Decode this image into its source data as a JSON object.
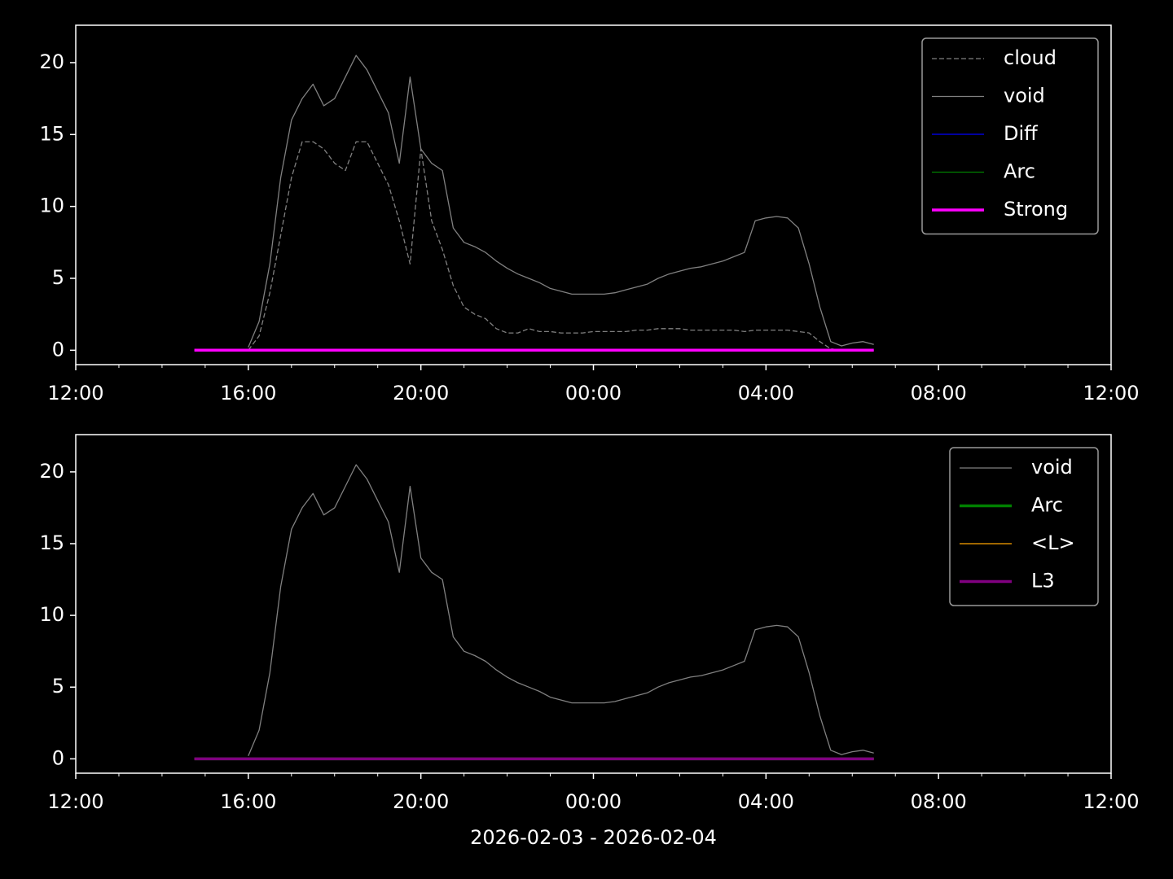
{
  "chart_data": [
    {
      "type": "line",
      "x": [
        14.75,
        15,
        15.25,
        15.5,
        15.75,
        16,
        16.25,
        16.5,
        16.75,
        17,
        17.25,
        17.5,
        17.75,
        18,
        18.25,
        18.5,
        18.75,
        19,
        19.25,
        19.5,
        19.75,
        20,
        20.25,
        20.5,
        20.75,
        21,
        21.25,
        21.5,
        21.75,
        22,
        22.25,
        22.5,
        22.75,
        23,
        23.25,
        23.5,
        23.75,
        24,
        24.25,
        24.5,
        24.75,
        25,
        25.25,
        25.5,
        25.75,
        26,
        26.25,
        26.5,
        26.75,
        27,
        27.25,
        27.5,
        27.75,
        28,
        28.25,
        28.5,
        28.75,
        29,
        29.25,
        29.5,
        29.75,
        30,
        30.25,
        30.5
      ],
      "xlim": [
        12,
        36
      ],
      "xticks": [
        {
          "value": 12,
          "label": "12:00"
        },
        {
          "value": 16,
          "label": "16:00"
        },
        {
          "value": 20,
          "label": "20:00"
        },
        {
          "value": 24,
          "label": "00:00"
        },
        {
          "value": 28,
          "label": "04:00"
        },
        {
          "value": 32,
          "label": "08:00"
        },
        {
          "value": 36,
          "label": "12:00"
        }
      ],
      "xminorticks": [
        13,
        14,
        15,
        17,
        18,
        19,
        21,
        22,
        23,
        25,
        26,
        27,
        29,
        30,
        31,
        33,
        34,
        35
      ],
      "ylim": [
        -1,
        22.6
      ],
      "yticks": [
        0,
        5,
        10,
        15,
        20
      ],
      "legend": "upper right",
      "series": [
        {
          "name": "cloud",
          "color": "#808080",
          "linestyle": "dashed",
          "linewidth": 1.3,
          "values": [
            null,
            null,
            null,
            null,
            null,
            0,
            1,
            4,
            8,
            12,
            14.5,
            14.5,
            14,
            13,
            12.5,
            14.5,
            14.5,
            13,
            11.5,
            9,
            6,
            14,
            9,
            7,
            4.5,
            3,
            2.5,
            2.2,
            1.5,
            1.2,
            1.2,
            1.5,
            1.3,
            1.3,
            1.2,
            1.2,
            1.2,
            1.3,
            1.3,
            1.3,
            1.3,
            1.4,
            1.4,
            1.5,
            1.5,
            1.5,
            1.4,
            1.4,
            1.4,
            1.4,
            1.4,
            1.3,
            1.4,
            1.4,
            1.4,
            1.4,
            1.3,
            1.2,
            0.6,
            0.1,
            0,
            null,
            null,
            null
          ]
        },
        {
          "name": "void",
          "color": "#808080",
          "linestyle": "solid",
          "linewidth": 1.3,
          "values": [
            null,
            null,
            null,
            null,
            null,
            0.2,
            2,
            6,
            12,
            16,
            17.5,
            18.5,
            17,
            17.5,
            19,
            20.5,
            19.5,
            18,
            16.5,
            13,
            19,
            14,
            13,
            12.5,
            8.5,
            7.5,
            7.2,
            6.8,
            6.2,
            5.7,
            5.3,
            5,
            4.7,
            4.3,
            4.1,
            3.9,
            3.9,
            3.9,
            3.9,
            4.0,
            4.2,
            4.4,
            4.6,
            5.0,
            5.3,
            5.5,
            5.7,
            5.8,
            6.0,
            6.2,
            6.5,
            6.8,
            9.0,
            9.2,
            9.3,
            9.2,
            8.5,
            6,
            3,
            0.6,
            0.3,
            0.5,
            0.6,
            0.4
          ]
        },
        {
          "name": "Diff",
          "color": "#0000ff",
          "linestyle": "solid",
          "linewidth": 1.3,
          "values": [
            0,
            0,
            0,
            0,
            0,
            0,
            0,
            0,
            0,
            0,
            0,
            0,
            0,
            0,
            0,
            0,
            0,
            0,
            0,
            0,
            0,
            0,
            0,
            0,
            0,
            0,
            0,
            0,
            0,
            0,
            0,
            0,
            0,
            0,
            0,
            0,
            0,
            0,
            0,
            0,
            0,
            0,
            0,
            0,
            0,
            0,
            0,
            0,
            0,
            0,
            0,
            0,
            0,
            0,
            0,
            0,
            0,
            0,
            0,
            0,
            0,
            0,
            0,
            0
          ]
        },
        {
          "name": "Arc",
          "color": "#008000",
          "linestyle": "solid",
          "linewidth": 1.3,
          "values": [
            0,
            0,
            0,
            0,
            0,
            0,
            0,
            0,
            0,
            0,
            0,
            0,
            0,
            0,
            0,
            0,
            0,
            0,
            0,
            0,
            0,
            0,
            0,
            0,
            0,
            0,
            0,
            0,
            0,
            0,
            0,
            0,
            0,
            0,
            0,
            0,
            0,
            0,
            0,
            0,
            0,
            0,
            0,
            0,
            0,
            0,
            0,
            0,
            0,
            0,
            0,
            0,
            0,
            0,
            0,
            0,
            0,
            0,
            0,
            0,
            0,
            0,
            0,
            0
          ]
        },
        {
          "name": "Strong",
          "color": "#ff00ff",
          "linestyle": "solid",
          "linewidth": 3.5,
          "values": [
            0,
            0,
            0,
            0,
            0,
            0,
            0,
            0,
            0,
            0,
            0,
            0,
            0,
            0,
            0,
            0,
            0,
            0,
            0,
            0,
            0,
            0,
            0,
            0,
            0,
            0,
            0,
            0,
            0,
            0,
            0,
            0,
            0,
            0,
            0,
            0,
            0,
            0,
            0,
            0,
            0,
            0,
            0,
            0,
            0,
            0,
            0,
            0,
            0,
            0,
            0,
            0,
            0,
            0,
            0,
            0,
            0,
            0,
            0,
            0,
            0,
            0,
            0,
            0
          ]
        }
      ]
    },
    {
      "type": "line",
      "x": [
        14.75,
        15,
        15.25,
        15.5,
        15.75,
        16,
        16.25,
        16.5,
        16.75,
        17,
        17.25,
        17.5,
        17.75,
        18,
        18.25,
        18.5,
        18.75,
        19,
        19.25,
        19.5,
        19.75,
        20,
        20.25,
        20.5,
        20.75,
        21,
        21.25,
        21.5,
        21.75,
        22,
        22.25,
        22.5,
        22.75,
        23,
        23.25,
        23.5,
        23.75,
        24,
        24.25,
        24.5,
        24.75,
        25,
        25.25,
        25.5,
        25.75,
        26,
        26.25,
        26.5,
        26.75,
        27,
        27.25,
        27.5,
        27.75,
        28,
        28.25,
        28.5,
        28.75,
        29,
        29.25,
        29.5,
        29.75,
        30,
        30.25,
        30.5
      ],
      "xlim": [
        12,
        36
      ],
      "xticks": [
        {
          "value": 12,
          "label": "12:00"
        },
        {
          "value": 16,
          "label": "16:00"
        },
        {
          "value": 20,
          "label": "20:00"
        },
        {
          "value": 24,
          "label": "00:00"
        },
        {
          "value": 28,
          "label": "04:00"
        },
        {
          "value": 32,
          "label": "08:00"
        },
        {
          "value": 36,
          "label": "12:00"
        }
      ],
      "xminorticks": [
        13,
        14,
        15,
        17,
        18,
        19,
        21,
        22,
        23,
        25,
        26,
        27,
        29,
        30,
        31,
        33,
        34,
        35
      ],
      "ylim": [
        -1,
        22.6
      ],
      "yticks": [
        0,
        5,
        10,
        15,
        20
      ],
      "x_label": "2026-02-03 - 2026-02-04",
      "legend": "upper right",
      "series": [
        {
          "name": "void",
          "color": "#808080",
          "linestyle": "solid",
          "linewidth": 1.3,
          "values": [
            null,
            null,
            null,
            null,
            null,
            0.2,
            2,
            6,
            12,
            16,
            17.5,
            18.5,
            17,
            17.5,
            19,
            20.5,
            19.5,
            18,
            16.5,
            13,
            19,
            14,
            13,
            12.5,
            8.5,
            7.5,
            7.2,
            6.8,
            6.2,
            5.7,
            5.3,
            5,
            4.7,
            4.3,
            4.1,
            3.9,
            3.9,
            3.9,
            3.9,
            4.0,
            4.2,
            4.4,
            4.6,
            5.0,
            5.3,
            5.5,
            5.7,
            5.8,
            6.0,
            6.2,
            6.5,
            6.8,
            9.0,
            9.2,
            9.3,
            9.2,
            8.5,
            6,
            3,
            0.6,
            0.3,
            0.5,
            0.6,
            0.4
          ]
        },
        {
          "name": "Arc",
          "color": "#008000",
          "linestyle": "solid",
          "linewidth": 3.5,
          "values": [
            0,
            0,
            0,
            0,
            0,
            0,
            0,
            0,
            0,
            0,
            0,
            0,
            0,
            0,
            0,
            0,
            0,
            0,
            0,
            0,
            0,
            0,
            0,
            0,
            0,
            0,
            0,
            0,
            0,
            0,
            0,
            0,
            0,
            0,
            0,
            0,
            0,
            0,
            0,
            0,
            0,
            0,
            0,
            0,
            0,
            0,
            0,
            0,
            0,
            0,
            0,
            0,
            0,
            0,
            0,
            0,
            0,
            0,
            0,
            0,
            0,
            0,
            0,
            0
          ]
        },
        {
          "name": "<L>",
          "color": "#ffa500",
          "linestyle": "solid",
          "linewidth": 1.3,
          "values": [
            0,
            0,
            0,
            0,
            0,
            0,
            0,
            0,
            0,
            0,
            0,
            0,
            0,
            0,
            0,
            0,
            0,
            0,
            0,
            0,
            0,
            0,
            0,
            0,
            0,
            0,
            0,
            0,
            0,
            0,
            0,
            0,
            0,
            0,
            0,
            0,
            0,
            0,
            0,
            0,
            0,
            0,
            0,
            0,
            0,
            0,
            0,
            0,
            0,
            0,
            0,
            0,
            0,
            0,
            0,
            0,
            0,
            0,
            0,
            0,
            0,
            0,
            0,
            0
          ]
        },
        {
          "name": "L3",
          "color": "#800080",
          "linestyle": "solid",
          "linewidth": 3.5,
          "values": [
            0,
            0,
            0,
            0,
            0,
            0,
            0,
            0,
            0,
            0,
            0,
            0,
            0,
            0,
            0,
            0,
            0,
            0,
            0,
            0,
            0,
            0,
            0,
            0,
            0,
            0,
            0,
            0,
            0,
            0,
            0,
            0,
            0,
            0,
            0,
            0,
            0,
            0,
            0,
            0,
            0,
            0,
            0,
            0,
            0,
            0,
            0,
            0,
            0,
            0,
            0,
            0,
            0,
            0,
            0,
            0,
            0,
            0,
            0,
            0,
            0,
            0,
            0,
            0
          ]
        }
      ]
    }
  ]
}
